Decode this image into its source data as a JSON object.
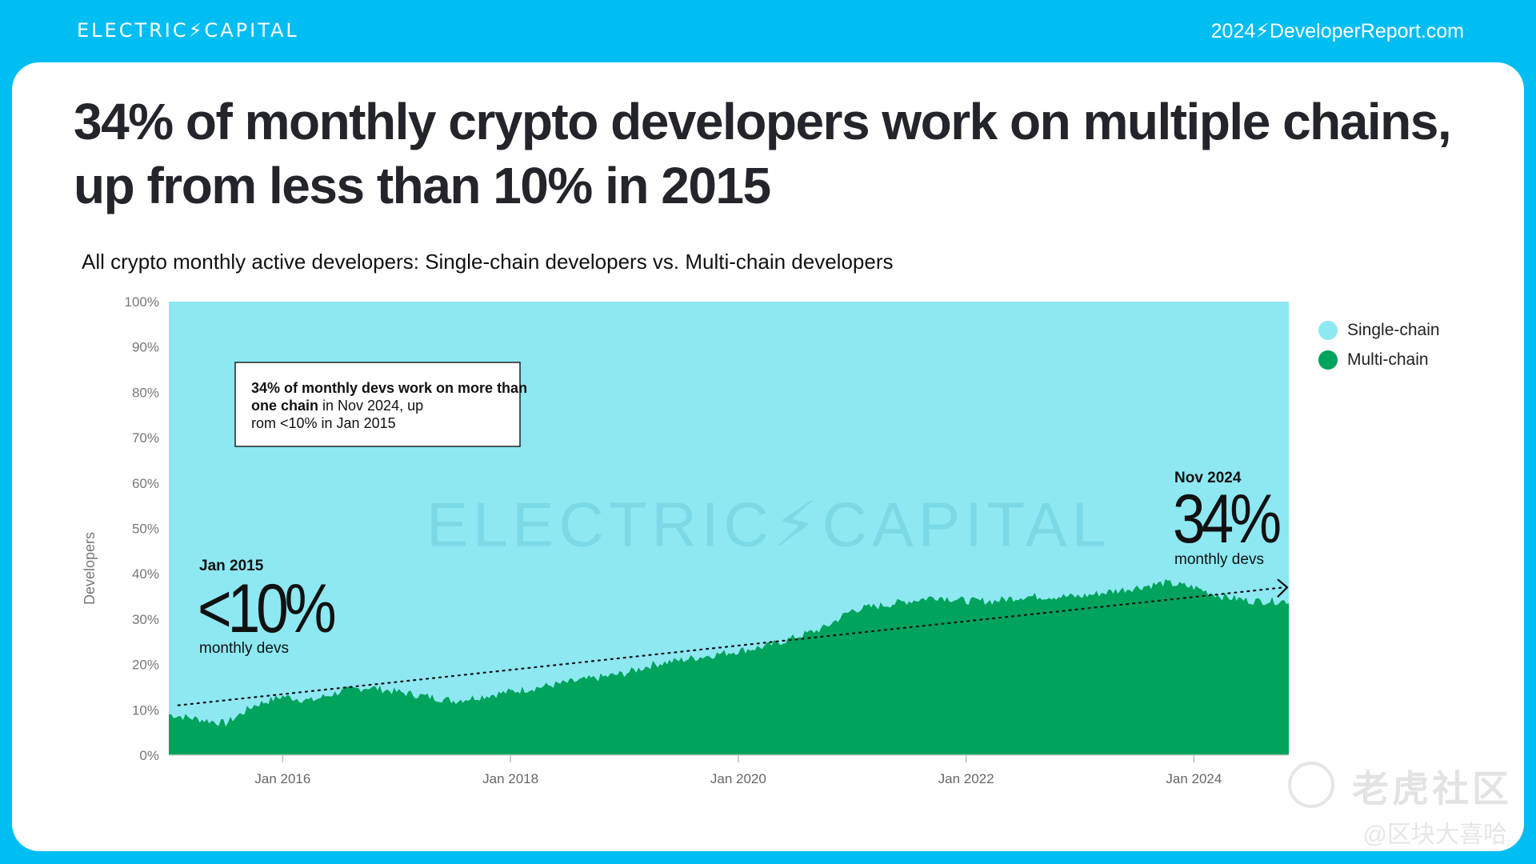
{
  "header": {
    "brand": "ELECTRIC⚡CAPITAL",
    "site": "2024⚡DeveloperReport.com"
  },
  "headline": "34% of monthly crypto developers work on multiple chains, up from less than 10% in 2015",
  "colors": {
    "background": "#00BDF2",
    "single_chain": "#8DE8F2",
    "multi_chain": "#00A35B",
    "text": "#23252B"
  },
  "chart_data": {
    "type": "area",
    "title": "All crypto monthly active developers: Single-chain developers vs. Multi-chain developers",
    "ylabel": "Developers",
    "xlabel": "",
    "ylim": [
      0,
      100
    ],
    "y_ticks": [
      "0%",
      "10%",
      "20%",
      "30%",
      "40%",
      "50%",
      "60%",
      "70%",
      "80%",
      "90%",
      "100%"
    ],
    "x_ticks": [
      {
        "date": "2016-01",
        "label": "Jan 2016"
      },
      {
        "date": "2018-01",
        "label": "Jan 2018"
      },
      {
        "date": "2020-01",
        "label": "Jan 2020"
      },
      {
        "date": "2022-01",
        "label": "Jan 2022"
      },
      {
        "date": "2024-01",
        "label": "Jan 2024"
      }
    ],
    "x_range": [
      "2015-01",
      "2024-11"
    ],
    "stacked_percent": true,
    "grid": false,
    "legend": {
      "position": "right",
      "entries": [
        "Single-chain",
        "Multi-chain"
      ]
    },
    "series": [
      {
        "name": "Multi-chain",
        "x": [
          "2015-01",
          "2015-04",
          "2015-07",
          "2015-10",
          "2016-01",
          "2016-04",
          "2016-07",
          "2016-10",
          "2017-01",
          "2017-04",
          "2017-07",
          "2017-10",
          "2018-01",
          "2018-04",
          "2018-07",
          "2018-10",
          "2019-01",
          "2019-04",
          "2019-07",
          "2019-10",
          "2020-01",
          "2020-04",
          "2020-07",
          "2020-10",
          "2021-01",
          "2021-04",
          "2021-07",
          "2021-10",
          "2022-01",
          "2022-04",
          "2022-07",
          "2022-10",
          "2023-01",
          "2023-04",
          "2023-07",
          "2023-10",
          "2024-01",
          "2024-04",
          "2024-07",
          "2024-11"
        ],
        "values": [
          9,
          8,
          7,
          11,
          13,
          12,
          14,
          15,
          14,
          13,
          12,
          13,
          14,
          15,
          16,
          17,
          18,
          20,
          21,
          22,
          23,
          24,
          26,
          28,
          32,
          33,
          34,
          35,
          34,
          34,
          35,
          35,
          35,
          36,
          37,
          38,
          37,
          35,
          34,
          34
        ]
      },
      {
        "name": "Single-chain",
        "note_values_are_remainder": true,
        "values": [
          91,
          92,
          93,
          89,
          87,
          88,
          86,
          85,
          86,
          87,
          88,
          87,
          86,
          85,
          84,
          83,
          82,
          80,
          79,
          78,
          77,
          76,
          74,
          72,
          68,
          67,
          66,
          65,
          66,
          66,
          65,
          65,
          65,
          64,
          63,
          62,
          63,
          65,
          66,
          66
        ]
      }
    ],
    "trendline": {
      "start": [
        "2015-02",
        11
      ],
      "end": [
        "2024-11",
        37
      ]
    },
    "annotations": {
      "box": {
        "bold": "34% of monthly devs work on more than one chain",
        "rest": " in Nov 2024, up from <10% in Jan 2015"
      },
      "start": {
        "date_label": "Jan 2015",
        "value": "<10%",
        "unit": "monthly devs"
      },
      "end": {
        "date_label": "Nov 2024",
        "value": "34%",
        "unit": "monthly devs"
      }
    },
    "watermark": "ELECTRIC⚡CAPITAL"
  },
  "overlay_watermark": {
    "cn": "老虎社区",
    "handle": "@区块大喜哈"
  }
}
